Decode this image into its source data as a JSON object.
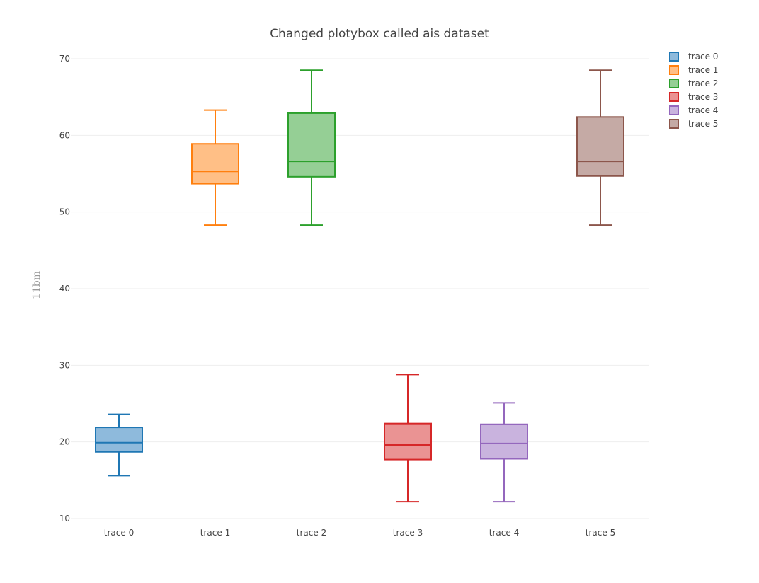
{
  "chart_data": {
    "type": "box",
    "title": "Changed plotybox called ais dataset",
    "xlabel": "",
    "ylabel": "11bm",
    "ylim": [
      10,
      71
    ],
    "yticks": [
      10,
      20,
      30,
      40,
      50,
      60,
      70
    ],
    "grid": true,
    "legend_position": "top-right",
    "categories": [
      "trace 0",
      "trace 1",
      "trace 2",
      "trace 3",
      "trace 4",
      "trace 5"
    ],
    "series": [
      {
        "name": "trace 0",
        "color": "#1f77b4",
        "fill": "#8ebadc",
        "min": 15.6,
        "q1": 18.7,
        "median": 19.9,
        "q3": 21.9,
        "max": 23.6
      },
      {
        "name": "trace 1",
        "color": "#ff7f0e",
        "fill": "#ffbf86",
        "min": 48.3,
        "q1": 53.7,
        "median": 55.3,
        "q3": 58.9,
        "max": 63.3
      },
      {
        "name": "trace 2",
        "color": "#2ca02c",
        "fill": "#95cf95",
        "min": 48.3,
        "q1": 54.6,
        "median": 56.6,
        "q3": 62.9,
        "max": 68.5
      },
      {
        "name": "trace 3",
        "color": "#d62728",
        "fill": "#ea9393",
        "min": 12.2,
        "q1": 17.7,
        "median": 19.6,
        "q3": 22.4,
        "max": 28.8
      },
      {
        "name": "trace 4",
        "color": "#9467bd",
        "fill": "#c9b3de",
        "min": 12.2,
        "q1": 17.8,
        "median": 19.8,
        "q3": 22.3,
        "max": 25.1
      },
      {
        "name": "trace 5",
        "color": "#8c564b",
        "fill": "#c5aaa5",
        "min": 48.3,
        "q1": 54.7,
        "median": 56.6,
        "q3": 62.4,
        "max": 68.5
      }
    ]
  }
}
